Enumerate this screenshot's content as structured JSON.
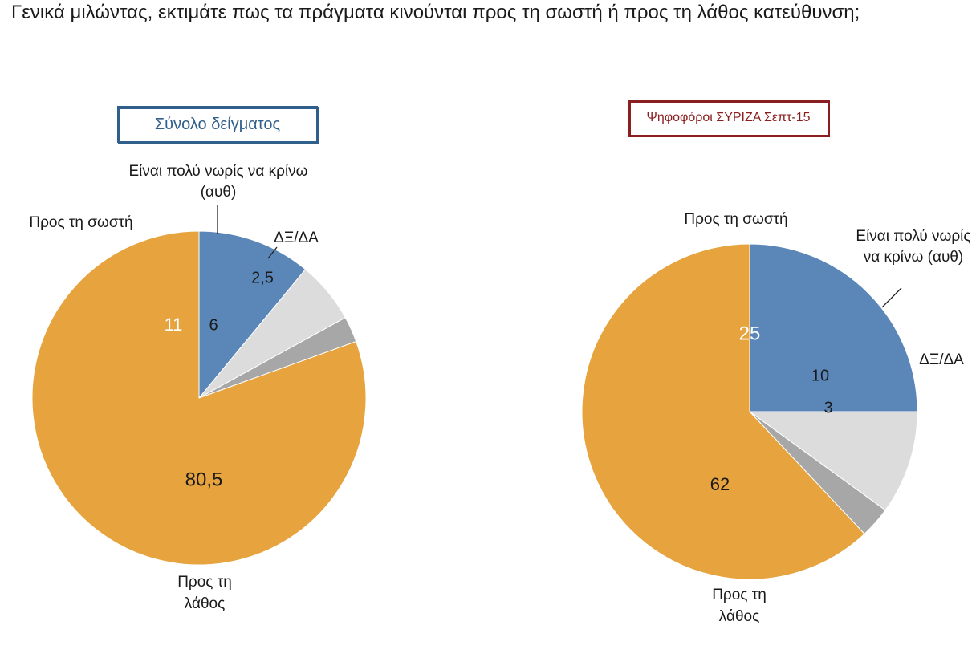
{
  "question": "Γενικά μιλώντας, εκτιμάτε πως τα πράγματα κινούνται προς τη σωστή ή προς τη λάθος κατεύθυνση;",
  "colors": {
    "right": "#5b86b8",
    "wrong": "#e6a33e",
    "early": "#dcdcdc",
    "dk": "#a7a7a7",
    "left_title": "#2f5f8a",
    "right_title": "#8b1e1e"
  },
  "chart_data": [
    {
      "type": "pie",
      "title": "Σύνολο δείγματος",
      "slices": [
        {
          "key": "right",
          "label": "Προς τη σωστή",
          "value": 11,
          "value_text": "11"
        },
        {
          "key": "early",
          "label_lines": [
            "Είναι πολύ νωρίς να κρίνω",
            "(αυθ)"
          ],
          "value": 6,
          "value_text": "6"
        },
        {
          "key": "dk",
          "label": "ΔΞ/ΔΑ",
          "value": 2.5,
          "value_text": "2,5"
        },
        {
          "key": "wrong",
          "label_lines": [
            "Προς τη",
            "λάθος"
          ],
          "value": 80.5,
          "value_text": "80,5"
        }
      ]
    },
    {
      "type": "pie",
      "title": "Ψηφοφόροι ΣΥΡΙΖΑ Σεπτ-15",
      "slices": [
        {
          "key": "right",
          "label": "Προς τη σωστή",
          "value": 25,
          "value_text": "25"
        },
        {
          "key": "early",
          "label_lines": [
            "Είναι πολύ νωρίς",
            "να κρίνω (αυθ)"
          ],
          "value": 10,
          "value_text": "10"
        },
        {
          "key": "dk",
          "label": "ΔΞ/ΔΑ",
          "value": 3,
          "value_text": "3"
        },
        {
          "key": "wrong",
          "label_lines": [
            "Προς τη",
            "λάθος"
          ],
          "value": 62,
          "value_text": "62"
        }
      ]
    }
  ]
}
